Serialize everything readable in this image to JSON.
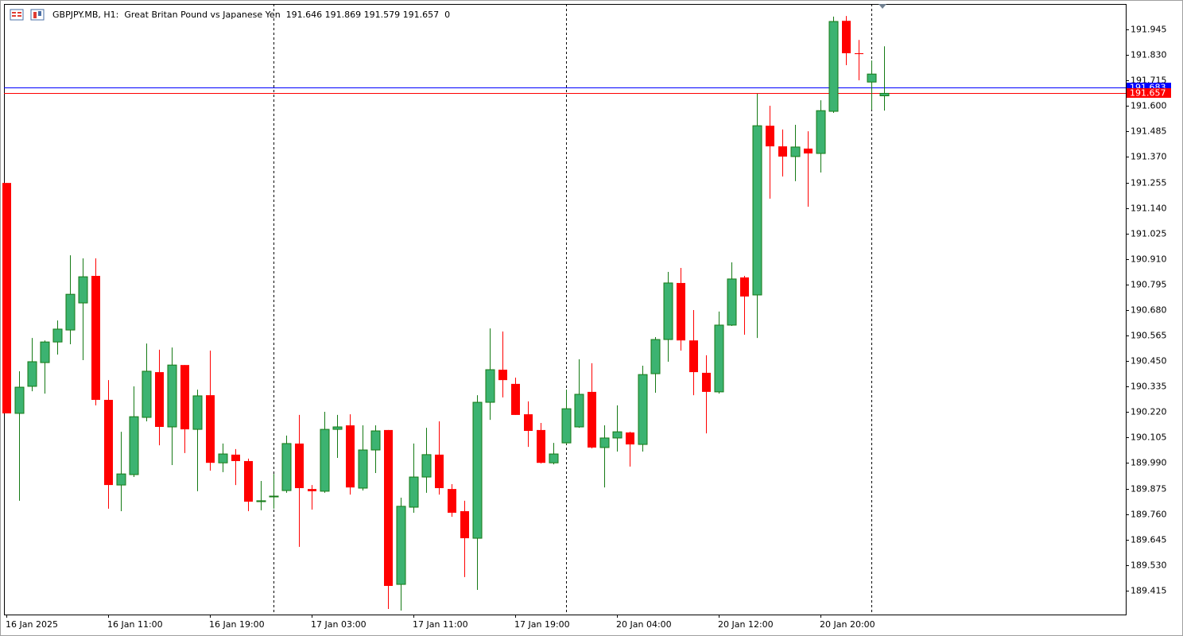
{
  "chart_data": {
    "type": "candlestick",
    "title": "GBPJPY.MB, H1:  Great Britan Pound vs Japanese Yen  191.646 191.869 191.579 191.657  0",
    "categories": [
      "16 Jan 2025",
      null,
      null,
      null,
      null,
      null,
      null,
      null,
      "16 Jan 11:00",
      null,
      null,
      null,
      null,
      null,
      null,
      null,
      "16 Jan 19:00",
      null,
      null,
      null,
      null,
      null,
      null,
      null,
      "17 Jan 03:00",
      null,
      null,
      null,
      null,
      null,
      null,
      null,
      "17 Jan 11:00",
      null,
      null,
      null,
      null,
      null,
      null,
      null,
      "17 Jan 19:00",
      null,
      null,
      null,
      null,
      null,
      null,
      null,
      "20 Jan 04:00",
      null,
      null,
      null,
      null,
      null,
      null,
      null,
      "20 Jan 12:00",
      null,
      null,
      null,
      null,
      null,
      null,
      null,
      "20 Jan 20:00",
      null,
      null,
      null,
      null,
      null
    ],
    "open": [
      191.253,
      190.214,
      190.336,
      190.443,
      190.536,
      190.59,
      190.712,
      190.834,
      190.275,
      189.891,
      189.938,
      190.196,
      190.4,
      190.153,
      190.432,
      190.142,
      190.296,
      189.991,
      190.028,
      189.999,
      189.816,
      189.841,
      189.866,
      190.078,
      189.873,
      189.863,
      190.142,
      190.16,
      189.877,
      190.049,
      190.139,
      189.443,
      189.791,
      189.927,
      190.028,
      189.873,
      189.773,
      189.651,
      190.264,
      190.411,
      190.347,
      190.21,
      190.139,
      189.991,
      190.081,
      190.153,
      190.311,
      190.06,
      190.103,
      190.128,
      190.074,
      190.393,
      190.547,
      190.802,
      190.543,
      190.397,
      190.311,
      190.612,
      190.827,
      190.748,
      191.511,
      191.418,
      191.372,
      191.408,
      191.386,
      191.576,
      191.984,
      191.838,
      191.708,
      191.646
    ],
    "high": [
      191.253,
      190.404,
      190.554,
      190.543,
      190.633,
      190.927,
      190.913,
      190.913,
      190.364,
      190.131,
      190.336,
      190.529,
      190.501,
      190.511,
      190.432,
      190.321,
      190.497,
      190.078,
      190.053,
      190.01,
      189.909,
      189.941,
      190.114,
      190.207,
      189.891,
      190.221,
      190.207,
      190.21,
      190.16,
      190.16,
      190.139,
      189.834,
      190.078,
      190.149,
      190.178,
      189.895,
      189.82,
      190.296,
      190.597,
      190.583,
      190.375,
      190.268,
      190.171,
      190.081,
      190.321,
      190.458,
      190.44,
      190.16,
      190.25,
      190.131,
      190.429,
      190.558,
      190.852,
      190.87,
      190.68,
      190.476,
      190.673,
      190.895,
      190.834,
      191.655,
      191.601,
      191.494,
      191.515,
      191.486,
      191.626,
      192.003,
      192.006,
      191.898,
      191.805,
      191.869
    ],
    "low": [
      190.214,
      189.82,
      190.314,
      190.303,
      190.479,
      190.526,
      190.454,
      190.25,
      189.784,
      189.773,
      189.927,
      190.178,
      190.07,
      189.981,
      190.035,
      189.863,
      189.956,
      189.949,
      189.891,
      189.773,
      189.777,
      189.784,
      189.856,
      189.612,
      189.78,
      189.856,
      190.013,
      189.848,
      189.866,
      189.945,
      189.332,
      189.325,
      189.766,
      189.856,
      189.848,
      189.748,
      189.476,
      189.418,
      190.185,
      190.286,
      190.207,
      190.063,
      189.988,
      189.984,
      190.074,
      190.149,
      190.056,
      189.88,
      190.042,
      189.974,
      190.042,
      190.307,
      190.447,
      190.497,
      190.296,
      190.124,
      190.303,
      190.608,
      190.569,
      190.554,
      191.182,
      191.282,
      191.261,
      191.146,
      191.3,
      191.569,
      191.784,
      191.716,
      191.583,
      191.579
    ],
    "close": [
      190.214,
      190.332,
      190.447,
      190.536,
      190.594,
      190.751,
      190.83,
      190.275,
      189.891,
      189.941,
      190.199,
      190.404,
      190.153,
      190.432,
      190.142,
      190.293,
      189.991,
      190.031,
      189.999,
      189.816,
      189.82,
      189.841,
      190.078,
      189.877,
      189.863,
      190.142,
      190.153,
      189.88,
      190.049,
      190.135,
      189.436,
      189.795,
      189.927,
      190.028,
      189.877,
      189.766,
      189.651,
      190.264,
      190.411,
      190.364,
      190.207,
      190.135,
      189.991,
      190.031,
      190.235,
      190.3,
      190.06,
      190.103,
      190.131,
      190.074,
      190.389,
      190.547,
      190.802,
      190.543,
      190.4,
      190.311,
      190.612,
      190.82,
      190.741,
      191.511,
      191.418,
      191.372,
      191.415,
      191.386,
      191.579,
      191.981,
      191.838,
      191.834,
      191.744,
      191.657
    ],
    "up_color": "#3cb371",
    "up_line_color": "#157a15",
    "down_color": "#ff0000",
    "price_lines": [
      {
        "value": 191.683,
        "color": "#0000ff"
      },
      {
        "value": 191.657,
        "color": "#ff0000"
      }
    ],
    "ylim": [
      189.307,
      192.06
    ],
    "yticks": [
      191.945,
      {
        "value": 191.83,
        "label": "191.830"
      },
      191.715,
      {
        "value": 191.6,
        "label": "191.600"
      },
      191.485,
      {
        "value": 191.37,
        "label": "191.370"
      },
      191.255,
      {
        "value": 191.14,
        "label": "191.140"
      },
      191.025,
      {
        "value": 190.91,
        "label": "190.910"
      },
      190.795,
      {
        "value": 190.68,
        "label": "190.680"
      },
      190.565,
      {
        "value": 190.45,
        "label": "190.450"
      },
      190.335,
      {
        "value": 190.22,
        "label": "190.220"
      },
      190.105,
      {
        "value": 189.99,
        "label": "189.990"
      },
      189.875,
      {
        "value": 189.76,
        "label": "189.760"
      },
      189.645,
      {
        "value": 189.53,
        "label": "189.530"
      },
      189.415
    ],
    "grid": false
  }
}
